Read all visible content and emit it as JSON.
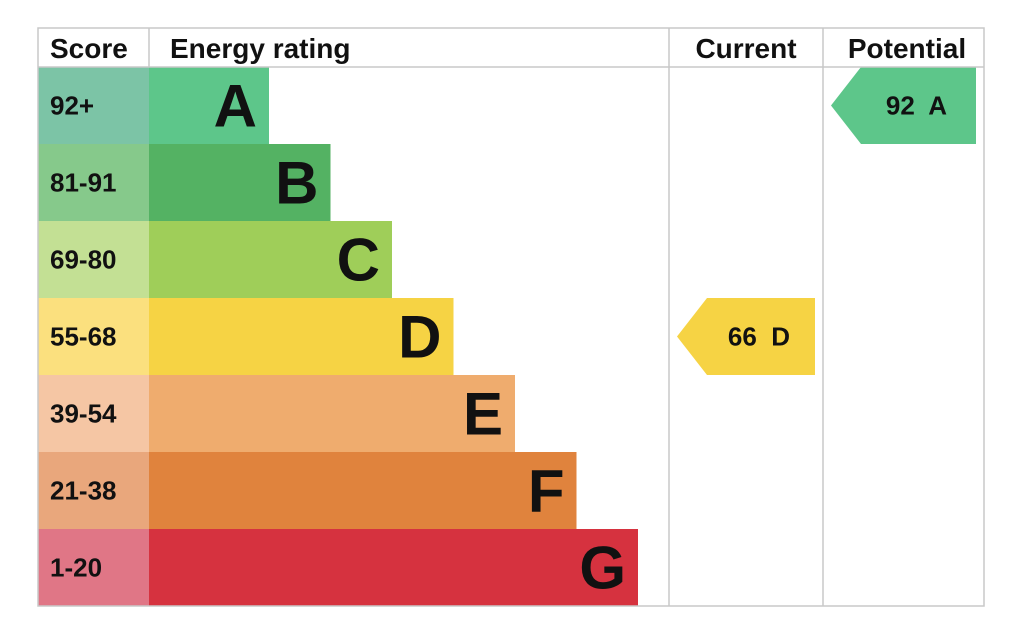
{
  "chart_data": {
    "type": "table",
    "headers": {
      "score": "Score",
      "energy_rating": "Energy rating",
      "current": "Current",
      "potential": "Potential"
    },
    "bands": [
      {
        "letter": "A",
        "range": "92+",
        "color": "#5dc68a",
        "score_color": "#7cc4a6"
      },
      {
        "letter": "B",
        "range": "81-91",
        "color": "#54b263",
        "score_color": "#86c98b"
      },
      {
        "letter": "C",
        "range": "69-80",
        "color": "#9fce59",
        "score_color": "#c3e094"
      },
      {
        "letter": "D",
        "range": "55-68",
        "color": "#f6d344",
        "score_color": "#fbe07e"
      },
      {
        "letter": "E",
        "range": "39-54",
        "color": "#efac6e",
        "score_color": "#f5c6a4"
      },
      {
        "letter": "F",
        "range": "21-38",
        "color": "#e0833d",
        "score_color": "#e9a77c"
      },
      {
        "letter": "G",
        "range": "1-20",
        "color": "#d6323f",
        "score_color": "#e07686"
      }
    ],
    "current": {
      "value": 66,
      "letter": "D",
      "label": "66  D",
      "color": "#f6d344"
    },
    "potential": {
      "value": 92,
      "letter": "A",
      "label": "92  A",
      "color": "#5dc68a"
    }
  }
}
